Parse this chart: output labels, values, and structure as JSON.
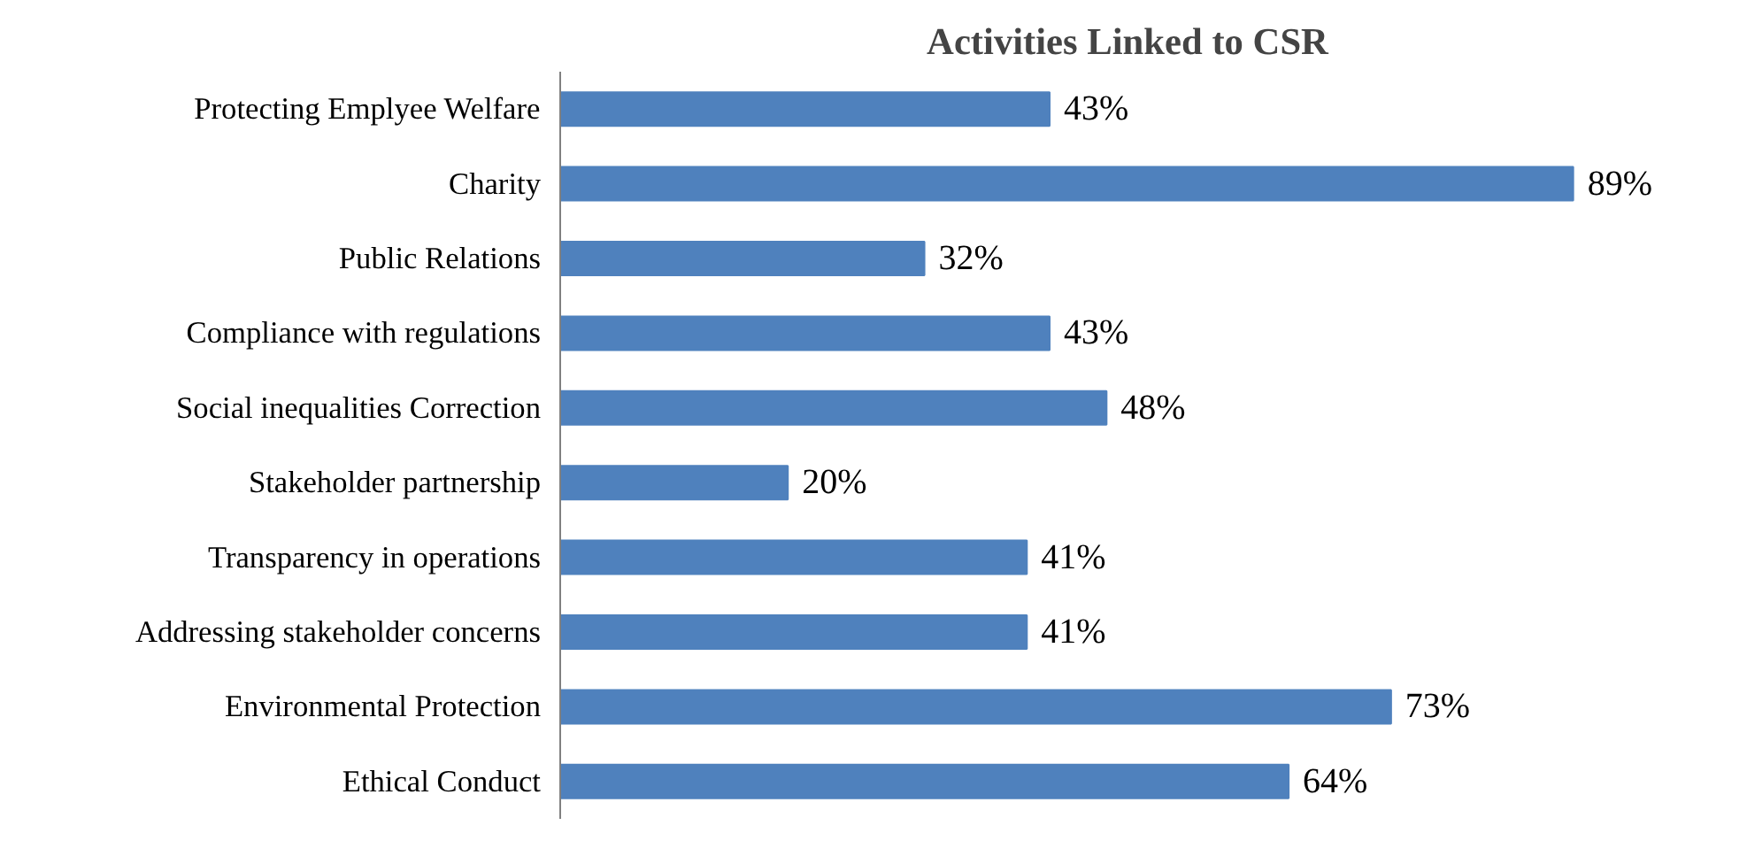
{
  "chart_data": {
    "type": "bar",
    "orientation": "horizontal",
    "title": "Activities Linked to CSR",
    "categories": [
      "Protecting Emplyee Welfare",
      "Charity",
      "Public Relations",
      "Compliance with regulations",
      "Social inequalities Correction",
      "Stakeholder partnership",
      "Transparency in operations",
      "Addressing stakeholder concerns",
      "Environmental Protection",
      "Ethical Conduct"
    ],
    "values": [
      43,
      89,
      32,
      43,
      48,
      20,
      41,
      41,
      73,
      64
    ],
    "value_labels": [
      "43%",
      "89%",
      "32%",
      "43%",
      "48%",
      "20%",
      "41%",
      "41%",
      "73%",
      "64%"
    ],
    "color": "#4f81bd",
    "grid": false,
    "tick_labels": "y"
  }
}
